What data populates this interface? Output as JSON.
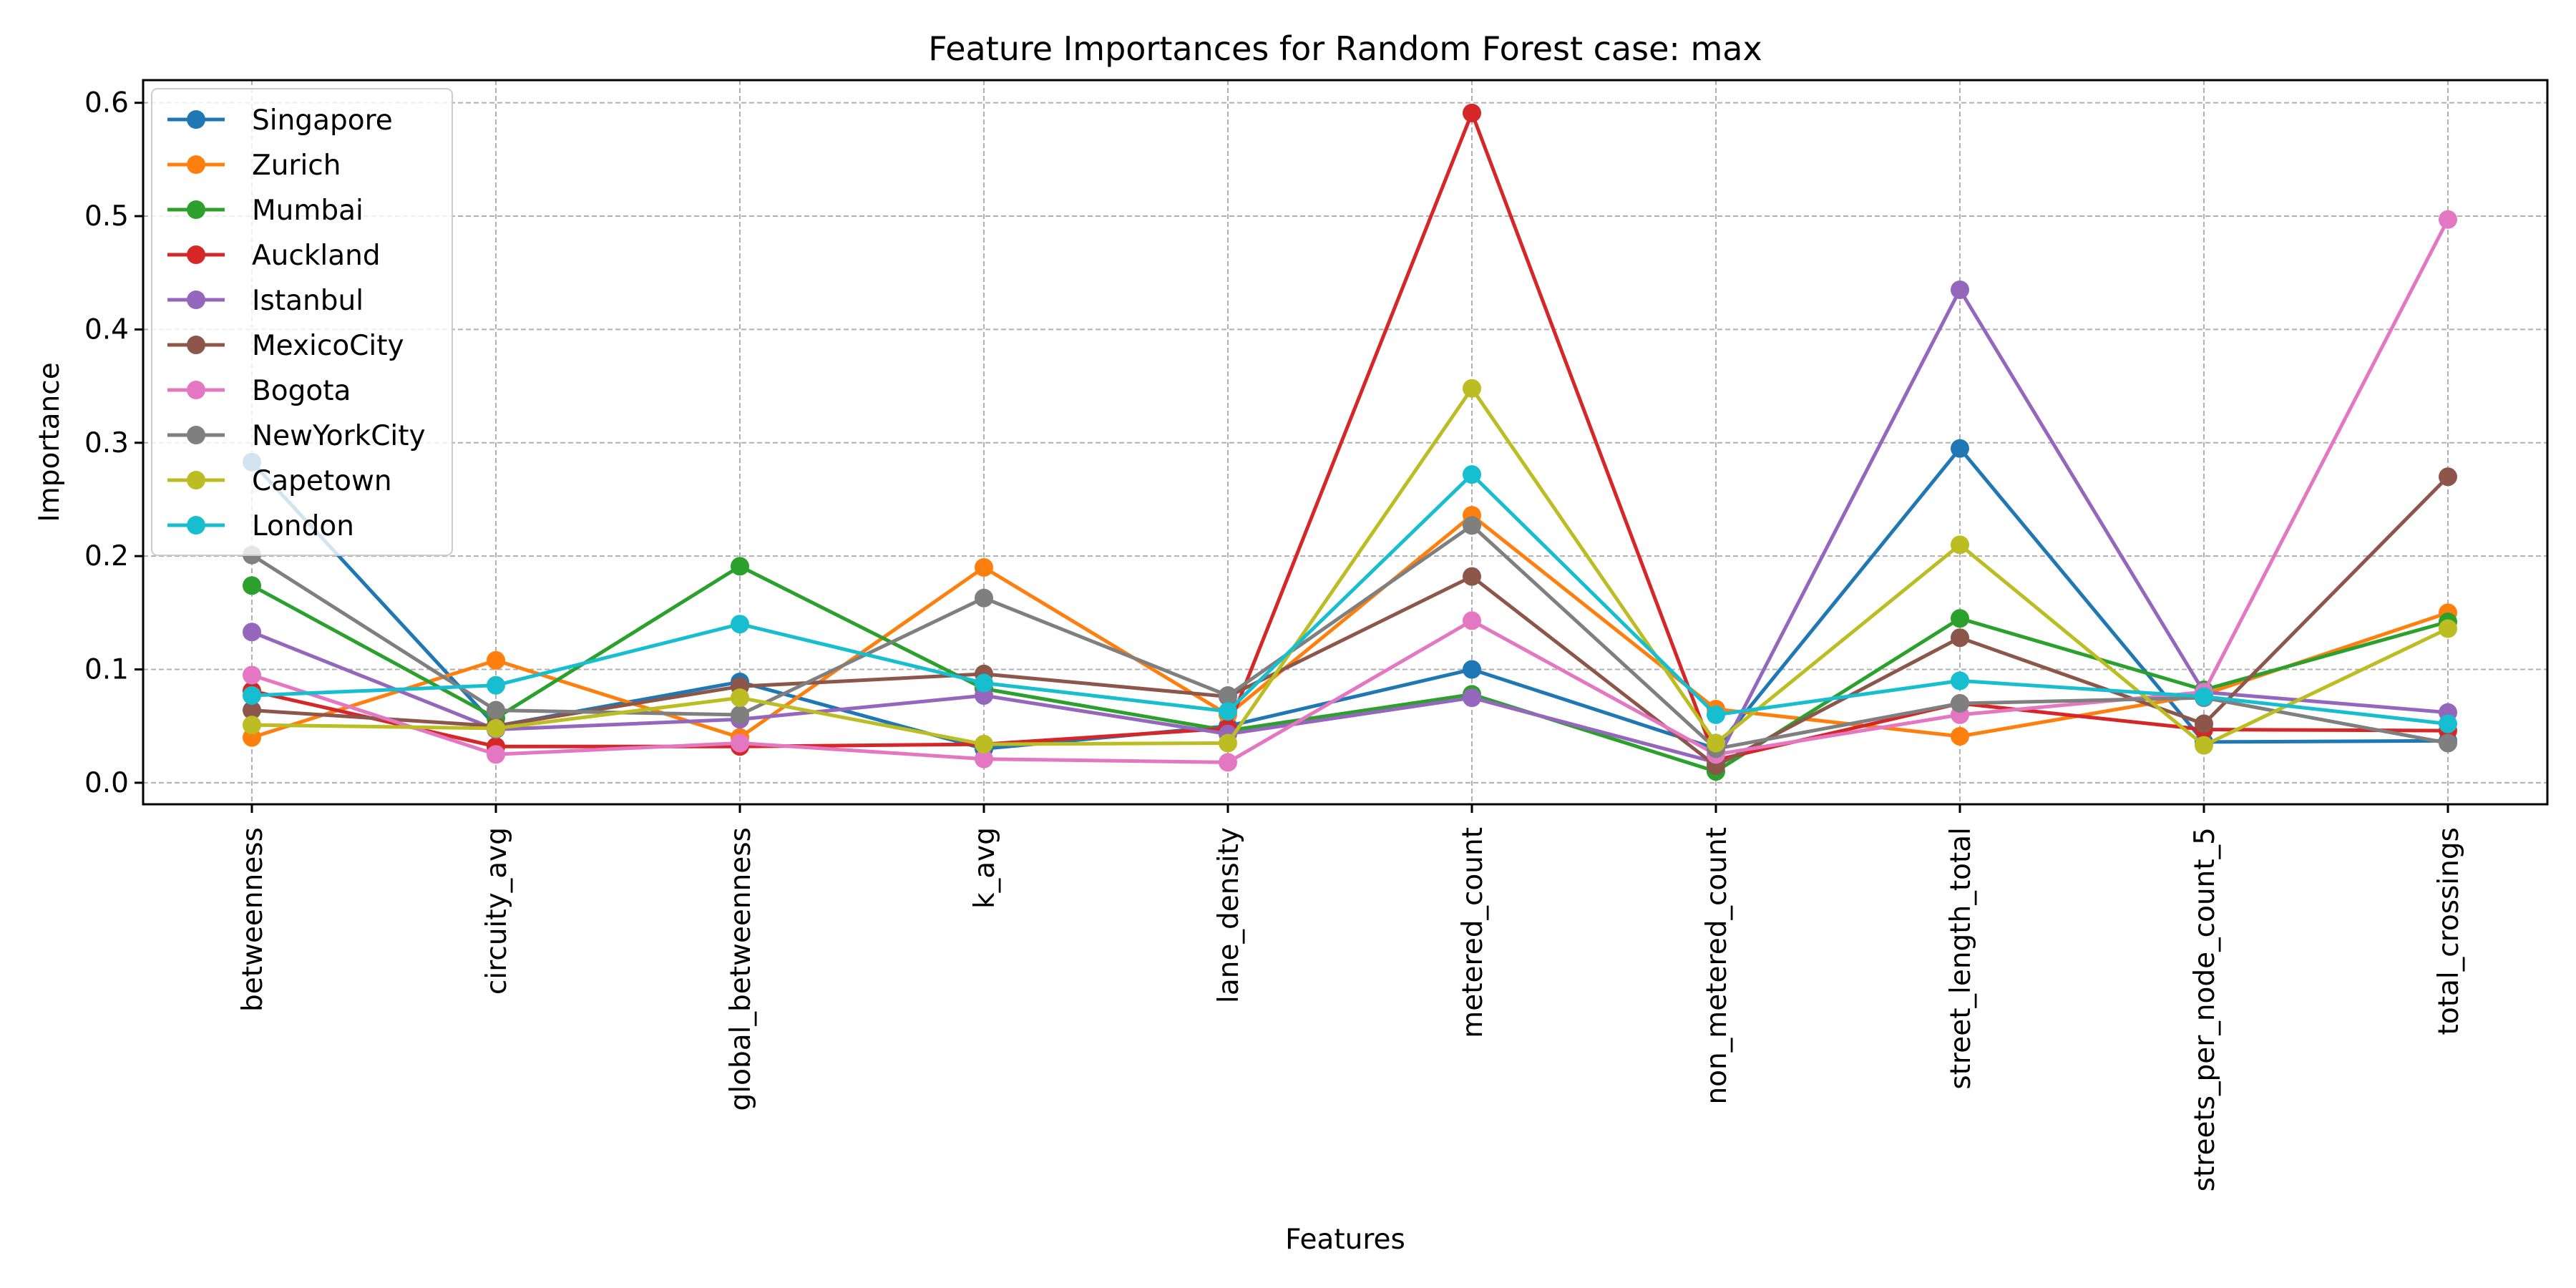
{
  "chart_data": {
    "type": "line",
    "title": "Feature Importances for Random Forest case: max",
    "xlabel": "Features",
    "ylabel": "Importance",
    "categories": [
      "betweenness",
      "circuity_avg",
      "global_betweenness",
      "k_avg",
      "lane_density",
      "metered_count",
      "non_metered_count",
      "street_length_total",
      "streets_per_node_count_5",
      "total_crossings"
    ],
    "ylim": [
      -0.019,
      0.62
    ],
    "yticks": [
      0.0,
      0.1,
      0.2,
      0.3,
      0.4,
      0.5,
      0.6
    ],
    "ytick_labels": [
      "0.0",
      "0.1",
      "0.2",
      "0.3",
      "0.4",
      "0.5",
      "0.6"
    ],
    "grid": true,
    "legend_position": "top-left",
    "series": [
      {
        "name": "Singapore",
        "color": "#1f77b4",
        "values": [
          0.283,
          0.05,
          0.089,
          0.03,
          0.05,
          0.1,
          0.03,
          0.295,
          0.036,
          0.037
        ]
      },
      {
        "name": "Zurich",
        "color": "#ff7f0e",
        "values": [
          0.04,
          0.108,
          0.04,
          0.19,
          0.06,
          0.236,
          0.065,
          0.041,
          0.078,
          0.15
        ]
      },
      {
        "name": "Mumbai",
        "color": "#2ca02c",
        "values": [
          0.174,
          0.057,
          0.191,
          0.083,
          0.046,
          0.078,
          0.01,
          0.145,
          0.082,
          0.142
        ]
      },
      {
        "name": "Auckland",
        "color": "#d62728",
        "values": [
          0.081,
          0.032,
          0.032,
          0.034,
          0.048,
          0.591,
          0.02,
          0.07,
          0.047,
          0.046
        ]
      },
      {
        "name": "Istanbul",
        "color": "#9467bd",
        "values": [
          0.133,
          0.047,
          0.056,
          0.077,
          0.043,
          0.075,
          0.018,
          0.435,
          0.08,
          0.062
        ]
      },
      {
        "name": "MexicoCity",
        "color": "#8c564b",
        "values": [
          0.064,
          0.05,
          0.085,
          0.096,
          0.076,
          0.182,
          0.015,
          0.128,
          0.052,
          0.27
        ]
      },
      {
        "name": "Bogota",
        "color": "#e377c2",
        "values": [
          0.095,
          0.025,
          0.035,
          0.021,
          0.018,
          0.143,
          0.025,
          0.06,
          0.08,
          0.497
        ]
      },
      {
        "name": "NewYorkCity",
        "color": "#7f7f7f",
        "values": [
          0.201,
          0.064,
          0.06,
          0.163,
          0.077,
          0.227,
          0.03,
          0.07,
          0.075,
          0.035
        ]
      },
      {
        "name": "Capetown",
        "color": "#bcbd22",
        "values": [
          0.051,
          0.048,
          0.075,
          0.034,
          0.035,
          0.348,
          0.035,
          0.21,
          0.033,
          0.136
        ]
      },
      {
        "name": "London",
        "color": "#17becf",
        "values": [
          0.077,
          0.086,
          0.14,
          0.088,
          0.063,
          0.272,
          0.06,
          0.09,
          0.076,
          0.052
        ]
      }
    ]
  }
}
